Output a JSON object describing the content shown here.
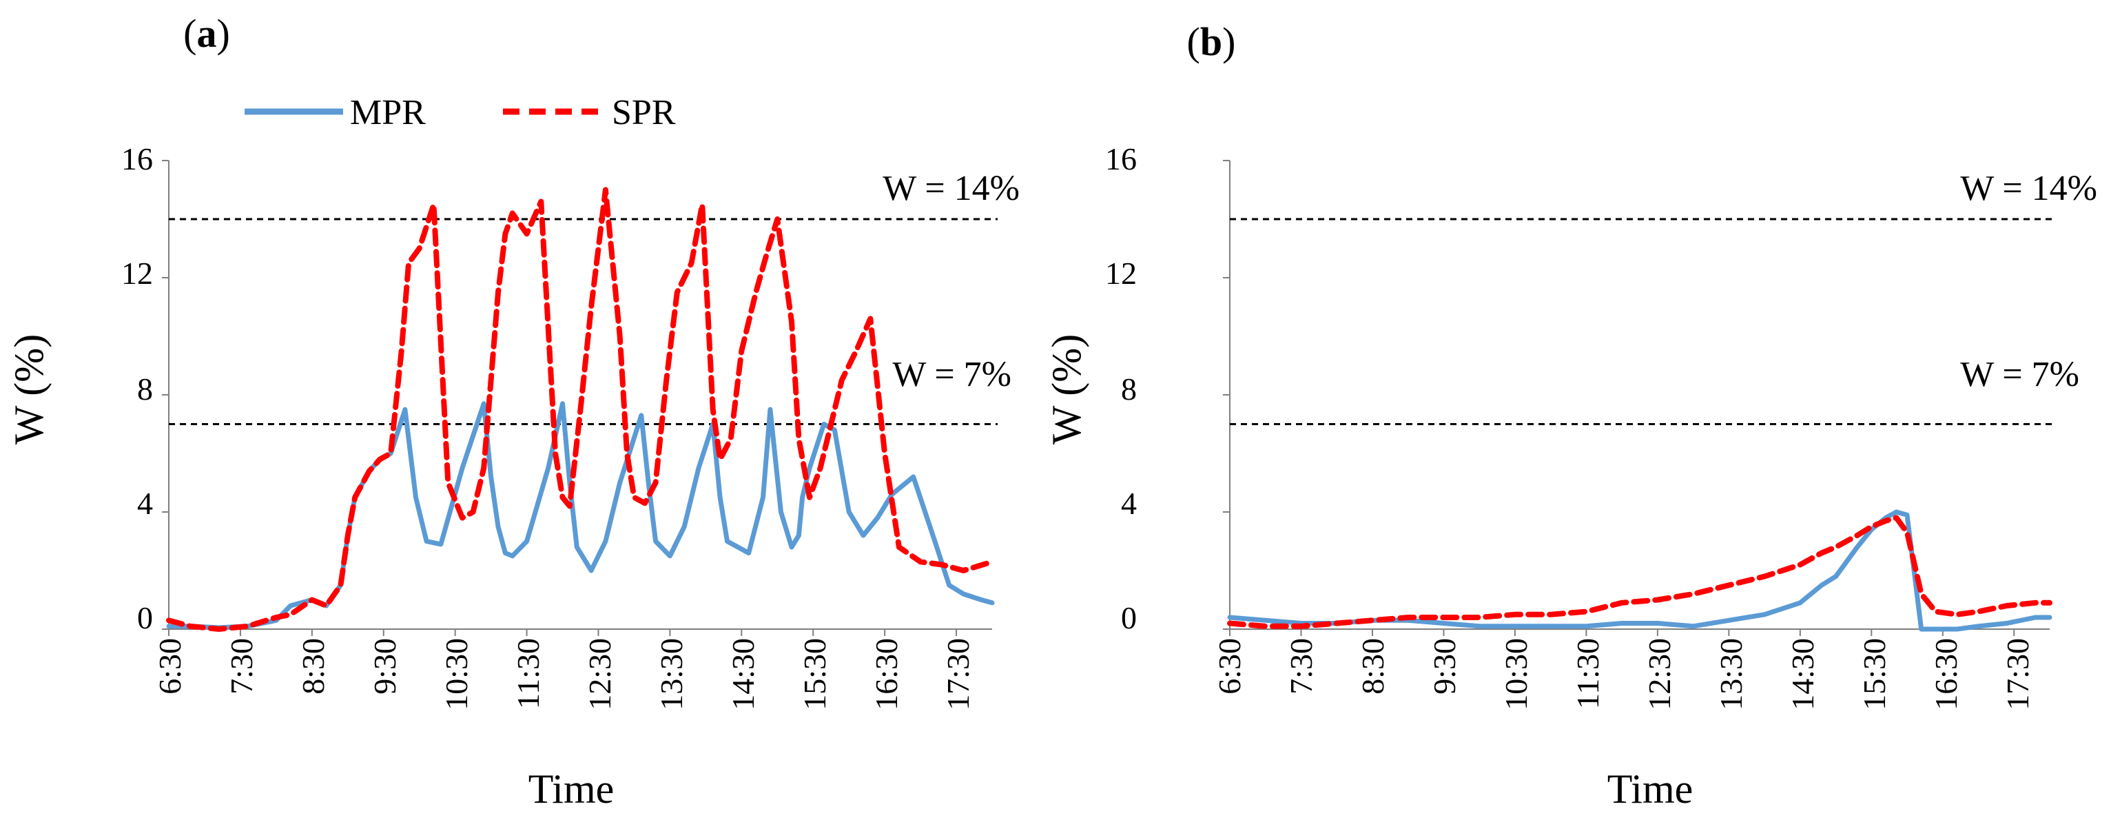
{
  "legend": {
    "items": [
      {
        "label": "MPR",
        "color": "#5b9bd5",
        "dash": "solid"
      },
      {
        "label": "SPR",
        "color": "#ff0000",
        "dash": "dashed"
      }
    ]
  },
  "chart_data": [
    {
      "panel": "a",
      "panel_label": {
        "open": "(",
        "letter": "a",
        "close": ")"
      },
      "type": "line",
      "xlabel": "Time",
      "ylabel": "W (%)",
      "ylim": [
        0,
        16
      ],
      "yticks": [
        "0",
        "4",
        "8",
        "12",
        "16"
      ],
      "yticks_values": [
        0,
        4,
        8,
        12,
        16
      ],
      "xlim": [
        6.5,
        18.0
      ],
      "xticks": [
        "6:30",
        "7:30",
        "8:30",
        "9:30",
        "10:30",
        "11:30",
        "12:30",
        "13:30",
        "14:30",
        "15:30",
        "16:30",
        "17:30"
      ],
      "xticks_values": [
        6.5,
        7.5,
        8.5,
        9.5,
        10.5,
        11.5,
        12.5,
        13.5,
        14.5,
        15.5,
        16.5,
        17.5
      ],
      "reference_lines": [
        {
          "label": "W = 14%",
          "y": 14
        },
        {
          "label": "W = 7%",
          "y": 7
        }
      ],
      "series": [
        {
          "name": "MPR",
          "x": [
            6.5,
            6.8,
            7.2,
            7.6,
            8.0,
            8.2,
            8.5,
            8.7,
            8.9,
            9.0,
            9.1,
            9.3,
            9.45,
            9.6,
            9.8,
            9.95,
            10.1,
            10.3,
            10.6,
            10.9,
            11.0,
            11.1,
            11.2,
            11.3,
            11.5,
            11.8,
            12.0,
            12.1,
            12.2,
            12.4,
            12.6,
            12.8,
            13.1,
            13.2,
            13.3,
            13.5,
            13.7,
            13.9,
            14.1,
            14.2,
            14.3,
            14.6,
            14.8,
            14.9,
            15.05,
            15.2,
            15.3,
            15.35,
            15.45,
            15.65,
            15.8,
            16.0,
            16.2,
            16.4,
            16.6,
            16.9,
            17.2,
            17.4,
            17.6,
            17.85,
            18.0
          ],
          "y": [
            0.1,
            0.1,
            0.05,
            0.1,
            0.3,
            0.8,
            1.0,
            0.8,
            1.5,
            3.2,
            4.5,
            5.4,
            5.8,
            6.0,
            7.5,
            4.5,
            3.0,
            2.9,
            5.5,
            7.7,
            5.2,
            3.5,
            2.6,
            2.5,
            3.0,
            5.5,
            7.7,
            5.0,
            2.8,
            2.0,
            3.0,
            5.0,
            7.3,
            5.0,
            3.0,
            2.5,
            3.5,
            5.5,
            7.0,
            4.5,
            3.0,
            2.6,
            4.5,
            7.5,
            4.0,
            2.8,
            3.2,
            4.5,
            5.5,
            7.0,
            6.8,
            4.0,
            3.2,
            3.8,
            4.6,
            5.2,
            3.0,
            1.5,
            1.2,
            1.0,
            0.9
          ]
        },
        {
          "name": "SPR",
          "x": [
            6.5,
            6.8,
            7.2,
            7.6,
            8.0,
            8.2,
            8.5,
            8.7,
            8.9,
            9.0,
            9.1,
            9.3,
            9.45,
            9.6,
            9.75,
            9.85,
            10.0,
            10.2,
            10.4,
            10.6,
            10.75,
            10.9,
            11.0,
            11.1,
            11.2,
            11.3,
            11.5,
            11.7,
            11.9,
            12.0,
            12.1,
            12.25,
            12.4,
            12.6,
            12.8,
            12.9,
            13.0,
            13.15,
            13.3,
            13.45,
            13.6,
            13.8,
            13.95,
            14.1,
            14.2,
            14.35,
            14.5,
            14.7,
            14.85,
            15.0,
            15.2,
            15.3,
            15.45,
            15.6,
            15.75,
            15.9,
            16.1,
            16.3,
            16.5,
            16.7,
            17.0,
            17.3,
            17.6,
            18.0
          ],
          "y": [
            0.3,
            0.1,
            0.0,
            0.1,
            0.4,
            0.5,
            1.0,
            0.8,
            1.5,
            3.2,
            4.5,
            5.4,
            5.8,
            6.0,
            9.5,
            12.5,
            13.0,
            14.5,
            5.0,
            3.8,
            4.0,
            5.5,
            8.5,
            11.5,
            13.5,
            14.2,
            13.5,
            14.6,
            6.0,
            4.5,
            4.2,
            7.5,
            11.0,
            15.0,
            10.0,
            6.0,
            4.5,
            4.3,
            5.0,
            8.5,
            11.5,
            12.5,
            14.5,
            7.5,
            5.8,
            6.5,
            9.5,
            11.5,
            12.8,
            14.0,
            10.5,
            6.5,
            4.5,
            5.5,
            7.0,
            8.5,
            9.5,
            10.6,
            6.0,
            2.8,
            2.3,
            2.2,
            2.0,
            2.3
          ]
        }
      ]
    },
    {
      "panel": "b",
      "panel_label": {
        "open": "(",
        "letter": "b",
        "close": ")"
      },
      "type": "line",
      "xlabel": "Time",
      "ylabel": "W (%)",
      "ylim": [
        0,
        16
      ],
      "yticks": [
        "0",
        "4",
        "8",
        "12",
        "16"
      ],
      "yticks_values": [
        0,
        4,
        8,
        12,
        16
      ],
      "xlim": [
        6.5,
        18.0
      ],
      "xticks": [
        "6:30",
        "7:30",
        "8:30",
        "9:30",
        "10:30",
        "11:30",
        "12:30",
        "13:30",
        "14:30",
        "15:30",
        "16:30",
        "17:30"
      ],
      "xticks_values": [
        6.5,
        7.5,
        8.5,
        9.5,
        10.5,
        11.5,
        12.5,
        13.5,
        14.5,
        15.5,
        16.5,
        17.5
      ],
      "reference_lines": [
        {
          "label": "W = 14%",
          "y": 14
        },
        {
          "label": "W = 7%",
          "y": 7
        }
      ],
      "series": [
        {
          "name": "MPR",
          "x": [
            6.5,
            7.0,
            7.5,
            8.0,
            8.5,
            9.0,
            9.5,
            10.0,
            10.5,
            11.0,
            11.5,
            12.0,
            12.5,
            13.0,
            13.5,
            14.0,
            14.5,
            14.8,
            15.0,
            15.3,
            15.5,
            15.7,
            15.85,
            16.0,
            16.2,
            16.4,
            16.7,
            17.0,
            17.4,
            17.8,
            18.0
          ],
          "y": [
            0.4,
            0.3,
            0.2,
            0.2,
            0.3,
            0.3,
            0.2,
            0.1,
            0.1,
            0.1,
            0.1,
            0.2,
            0.2,
            0.1,
            0.3,
            0.5,
            0.9,
            1.5,
            1.8,
            2.8,
            3.4,
            3.8,
            4.0,
            3.9,
            0.0,
            0.0,
            0.0,
            0.1,
            0.2,
            0.4,
            0.4
          ]
        },
        {
          "name": "SPR",
          "x": [
            6.5,
            7.0,
            7.5,
            8.0,
            8.5,
            9.0,
            9.5,
            10.0,
            10.5,
            11.0,
            11.5,
            12.0,
            12.5,
            13.0,
            13.5,
            14.0,
            14.5,
            14.8,
            15.0,
            15.3,
            15.5,
            15.7,
            15.85,
            16.0,
            16.2,
            16.4,
            16.7,
            17.0,
            17.4,
            17.8,
            18.0
          ],
          "y": [
            0.2,
            0.1,
            0.1,
            0.2,
            0.3,
            0.4,
            0.4,
            0.4,
            0.5,
            0.5,
            0.6,
            0.9,
            1.0,
            1.2,
            1.5,
            1.8,
            2.2,
            2.6,
            2.8,
            3.2,
            3.5,
            3.7,
            3.8,
            3.3,
            1.2,
            0.6,
            0.5,
            0.6,
            0.8,
            0.9,
            0.9
          ]
        }
      ]
    }
  ]
}
